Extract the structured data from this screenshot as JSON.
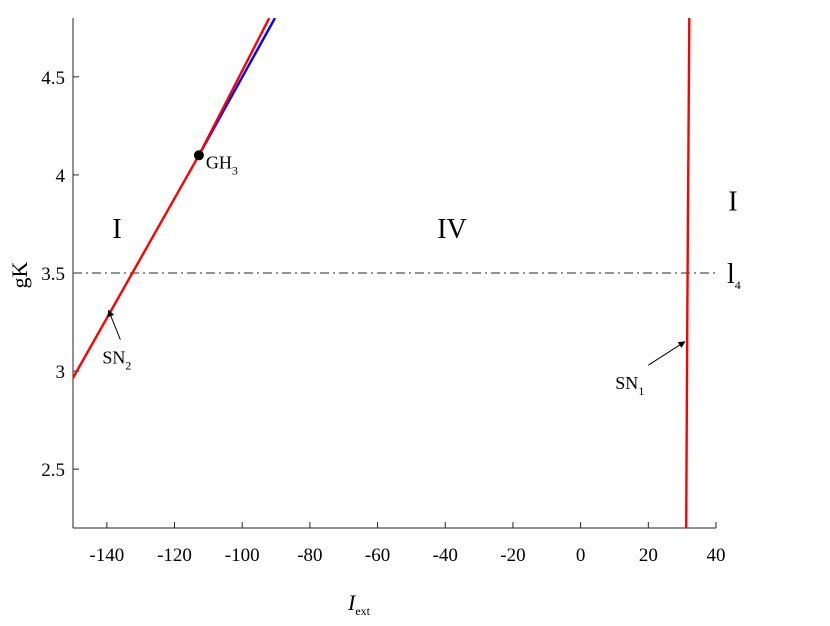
{
  "chart_data": {
    "type": "line",
    "xlabel": "I",
    "xlabel_sub": "ext",
    "ylabel": "gK",
    "xlim": [
      -150,
      40
    ],
    "ylim": [
      2.2,
      4.8
    ],
    "x_ticks": [
      -140,
      -120,
      -100,
      -80,
      -60,
      -40,
      -20,
      0,
      20,
      40
    ],
    "y_ticks": [
      2.5,
      3,
      3.5,
      4,
      4.5
    ],
    "series": [
      {
        "color": "#0000ff",
        "points": [
          [
            -112.8,
            4.1
          ],
          [
            -90.3,
            4.8
          ]
        ]
      },
      {
        "color": "#ff0000",
        "points": [
          [
            -150.5,
            2.95
          ],
          [
            -112.8,
            4.1
          ],
          [
            -92.0,
            4.8
          ]
        ]
      },
      {
        "color": "#ff0000",
        "points": [
          [
            31.2,
            2.2
          ],
          [
            31.5,
            3.2
          ],
          [
            32.1,
            4.8
          ]
        ]
      }
    ],
    "hline": {
      "y": 3.5,
      "style": "dash-dot",
      "color": "#555555",
      "label": "l",
      "label_sub": "4"
    },
    "points": [
      {
        "name": "GH",
        "sub": "3",
        "x": -112.8,
        "y": 4.1
      }
    ],
    "annotations": [
      {
        "text": "SN",
        "sub": "2",
        "tip": [
          -139.5,
          3.31
        ],
        "at": [
          -136,
          3.16
        ]
      },
      {
        "text": "SN",
        "sub": "1",
        "tip": [
          30.8,
          3.15
        ],
        "at": [
          20,
          3.03
        ]
      }
    ],
    "regions": [
      {
        "label": "I",
        "x": -137,
        "y": 3.73
      },
      {
        "label": "IV",
        "x": -38,
        "y": 3.73
      },
      {
        "label": "I",
        "x": 45,
        "y": 3.87
      }
    ]
  }
}
